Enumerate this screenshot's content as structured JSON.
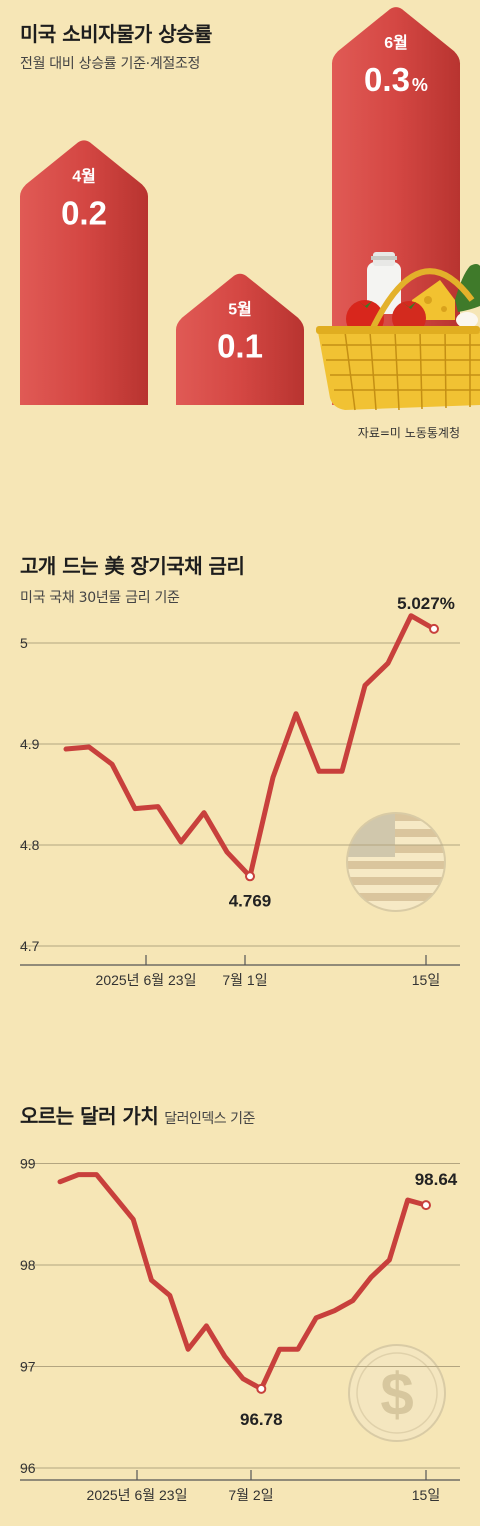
{
  "section1": {
    "title": "미국 소비자물가 상승률",
    "subtitle": "전월 대비 상승률 기준·계절조정",
    "source": "자료=미 노동통계청"
  },
  "section2": {
    "title": "고개 드는 美 장기국채 금리",
    "subtitle": "미국 국채 30년물 금리 기준"
  },
  "section3": {
    "title": "오르는 달러 가치",
    "subtitle": "달러인덱스 기준"
  },
  "chart_data": [
    {
      "type": "bar",
      "categories": [
        "4월",
        "5월",
        "6월"
      ],
      "values": [
        0.2,
        0.1,
        0.3
      ],
      "value_labels": [
        "0.2",
        "0.1",
        "0.3"
      ],
      "unit": "%",
      "colors": {
        "bar": "#d94a4a",
        "text": "#ffffff"
      }
    },
    {
      "type": "line",
      "x_tick_labels": [
        "2025년 6월 23일",
        "7월 1일",
        "15일"
      ],
      "y_ticks": [
        4.7,
        4.8,
        4.9,
        5.0
      ],
      "ylim": [
        4.7,
        5.05
      ],
      "annotations": [
        {
          "label": "4.769",
          "value": 4.769
        },
        {
          "label": "5.027%",
          "value": 5.027
        }
      ],
      "series": [
        {
          "values": [
            4.895,
            4.897,
            4.88,
            4.836,
            4.838,
            4.803,
            4.832,
            4.793,
            4.769,
            4.867,
            4.93,
            4.873,
            4.873,
            4.958,
            4.98,
            5.027,
            5.014
          ]
        }
      ],
      "colors": {
        "line": "#c8403c",
        "grid": "#b3a580",
        "marker_fill": "#ffffff"
      }
    },
    {
      "type": "line",
      "x_tick_labels": [
        "2025년 6월 23일",
        "7월 2일",
        "15일"
      ],
      "y_ticks": [
        96,
        97,
        98,
        99
      ],
      "ylim": [
        96,
        99
      ],
      "annotations": [
        {
          "label": "96.78",
          "value": 96.78
        },
        {
          "label": "98.64",
          "value": 98.64
        }
      ],
      "series": [
        {
          "values": [
            98.82,
            98.89,
            98.89,
            98.67,
            98.45,
            97.85,
            97.7,
            97.17,
            97.4,
            97.1,
            96.88,
            96.78,
            97.17,
            97.17,
            97.48,
            97.55,
            97.65,
            97.88,
            98.05,
            98.64,
            98.59
          ]
        }
      ],
      "colors": {
        "line": "#c8403c",
        "grid": "#b3a580",
        "marker_fill": "#ffffff"
      }
    }
  ]
}
